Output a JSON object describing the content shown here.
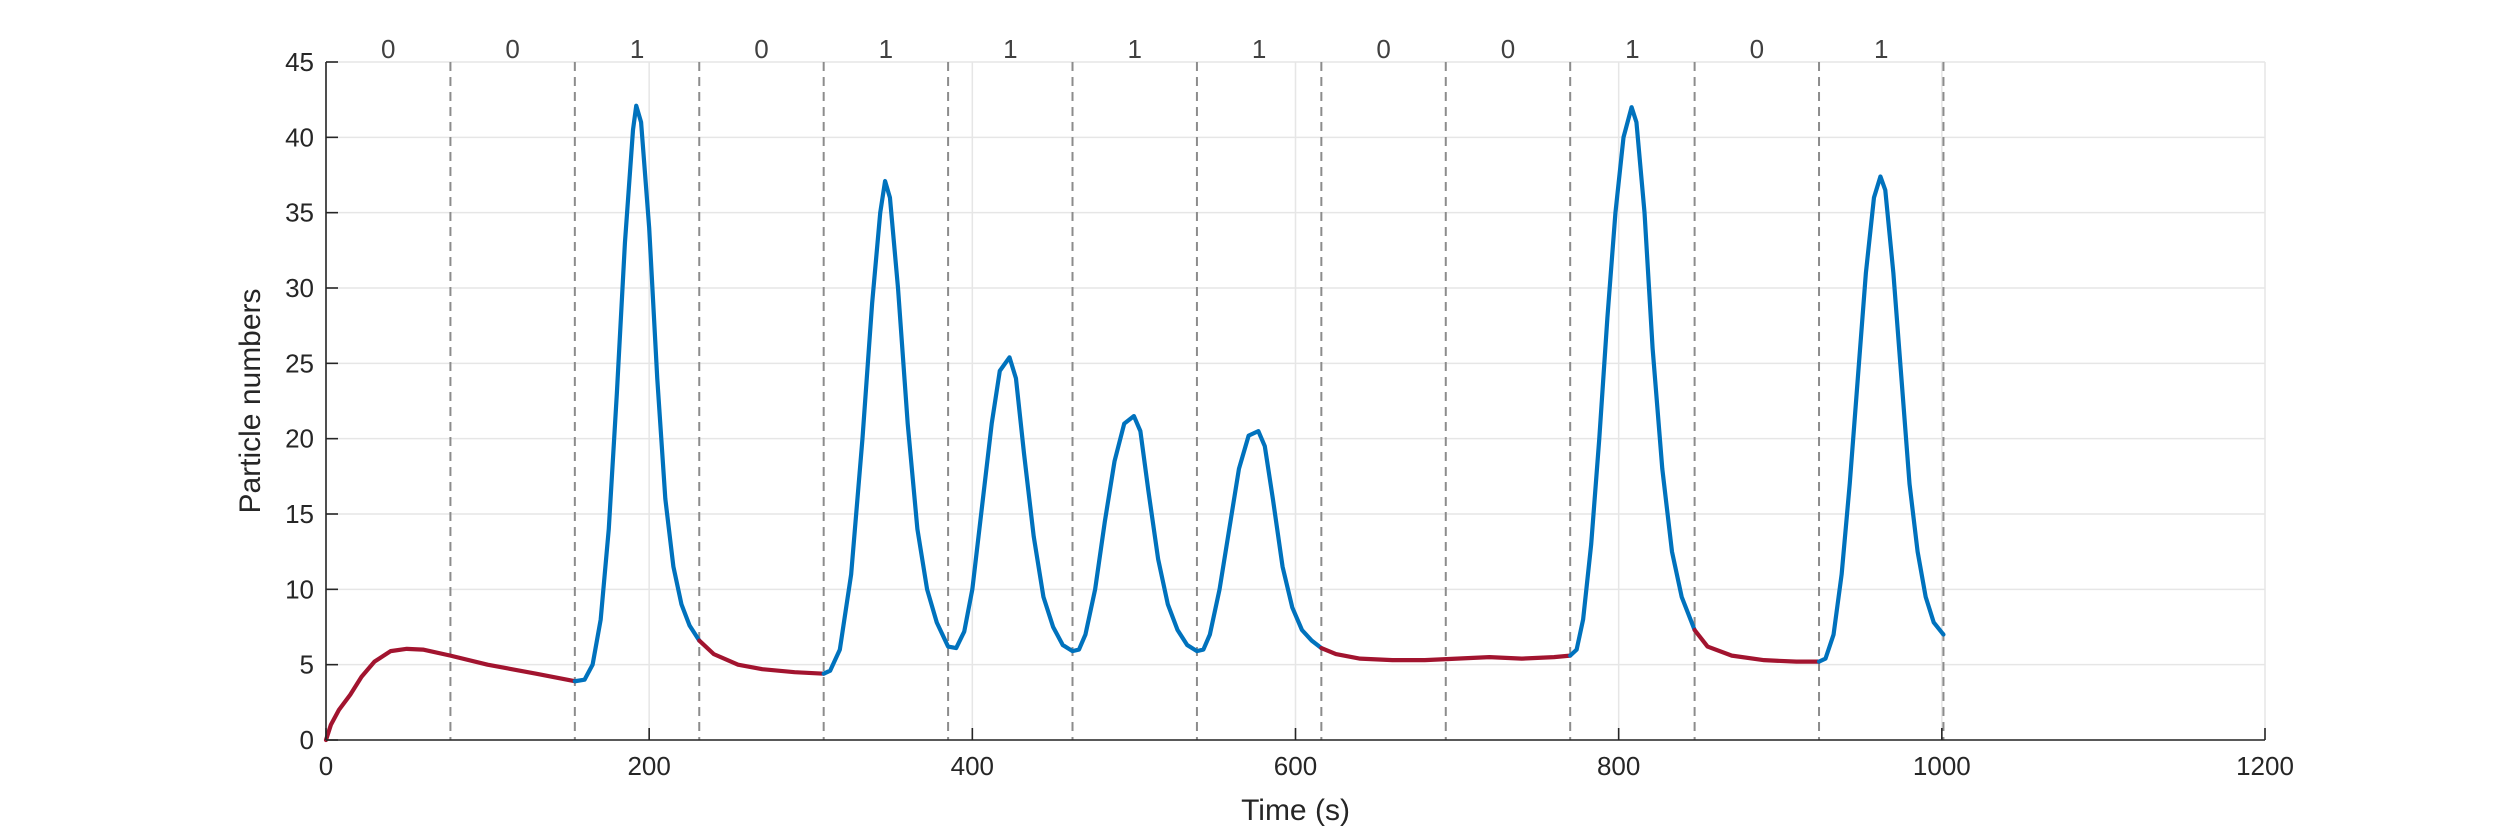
{
  "chart_data": {
    "type": "line",
    "title": "",
    "xlabel": "Time (s)",
    "ylabel": "Particle numbers",
    "xlim": [
      0,
      1200
    ],
    "ylim": [
      0,
      45
    ],
    "xticks": [
      0,
      200,
      400,
      600,
      800,
      1000,
      1200
    ],
    "yticks": [
      0,
      5,
      10,
      15,
      20,
      25,
      30,
      35,
      40,
      45
    ],
    "grid": true,
    "colors": {
      "state_0": "#a2142f",
      "state_1": "#0072bd",
      "boundary": "#8c8c8c",
      "grid": "#e6e6e6",
      "axis": "#262626"
    },
    "segment_boundaries": [
      77,
      154,
      231,
      308,
      385,
      462,
      539,
      616,
      693,
      770,
      847,
      924,
      1001
    ],
    "segments": [
      {
        "label": "0",
        "start": 0,
        "end": 77
      },
      {
        "label": "0",
        "start": 77,
        "end": 154
      },
      {
        "label": "1",
        "start": 154,
        "end": 231
      },
      {
        "label": "0",
        "start": 231,
        "end": 308
      },
      {
        "label": "1",
        "start": 308,
        "end": 385
      },
      {
        "label": "1",
        "start": 385,
        "end": 462
      },
      {
        "label": "1",
        "start": 462,
        "end": 539
      },
      {
        "label": "1",
        "start": 539,
        "end": 616
      },
      {
        "label": "0",
        "start": 616,
        "end": 693
      },
      {
        "label": "0",
        "start": 693,
        "end": 770
      },
      {
        "label": "1",
        "start": 770,
        "end": 847
      },
      {
        "label": "0",
        "start": 847,
        "end": 924
      },
      {
        "label": "1",
        "start": 924,
        "end": 1001
      }
    ],
    "peaks": [
      {
        "t": 192,
        "value": 42.1
      },
      {
        "t": 346,
        "value": 37.1
      },
      {
        "t": 423,
        "value": 25.4
      },
      {
        "t": 500,
        "value": 21.5
      },
      {
        "t": 577,
        "value": 20.5
      },
      {
        "t": 808,
        "value": 42.0
      },
      {
        "t": 962,
        "value": 37.4
      }
    ],
    "series": [
      {
        "state": "0",
        "points": [
          [
            0,
            0
          ],
          [
            3,
            1
          ],
          [
            8,
            2
          ],
          [
            15,
            3
          ],
          [
            22,
            4.2
          ],
          [
            30,
            5.2
          ],
          [
            40,
            5.9
          ],
          [
            50,
            6.05
          ],
          [
            60,
            6.0
          ],
          [
            77,
            5.6
          ],
          [
            100,
            5.0
          ],
          [
            130,
            4.4
          ],
          [
            154,
            3.9
          ]
        ]
      },
      {
        "state": "1",
        "points": [
          [
            154,
            3.9
          ],
          [
            160,
            4
          ],
          [
            165,
            5
          ],
          [
            170,
            8
          ],
          [
            175,
            14
          ],
          [
            180,
            23
          ],
          [
            185,
            33
          ],
          [
            190,
            40.5
          ],
          [
            192,
            42.1
          ],
          [
            195,
            41
          ],
          [
            200,
            34
          ],
          [
            205,
            24
          ],
          [
            210,
            16
          ],
          [
            215,
            11.5
          ],
          [
            220,
            9
          ],
          [
            225,
            7.6
          ],
          [
            231,
            6.6
          ]
        ]
      },
      {
        "state": "0",
        "points": [
          [
            231,
            6.6
          ],
          [
            240,
            5.7
          ],
          [
            255,
            5
          ],
          [
            270,
            4.7
          ],
          [
            290,
            4.5
          ],
          [
            308,
            4.4
          ]
        ]
      },
      {
        "state": "1",
        "points": [
          [
            308,
            4.4
          ],
          [
            312,
            4.6
          ],
          [
            318,
            6
          ],
          [
            325,
            11
          ],
          [
            332,
            20
          ],
          [
            338,
            29
          ],
          [
            343,
            35
          ],
          [
            346,
            37.1
          ],
          [
            349,
            36
          ],
          [
            354,
            30
          ],
          [
            360,
            21
          ],
          [
            366,
            14
          ],
          [
            372,
            10
          ],
          [
            378,
            7.8
          ],
          [
            385,
            6.2
          ],
          [
            390,
            6.1
          ],
          [
            395,
            7.2
          ],
          [
            400,
            10
          ],
          [
            406,
            15.5
          ],
          [
            412,
            21
          ],
          [
            417,
            24.5
          ],
          [
            423,
            25.4
          ],
          [
            427,
            24
          ],
          [
            432,
            19
          ],
          [
            438,
            13.5
          ],
          [
            444,
            9.5
          ],
          [
            450,
            7.5
          ],
          [
            456,
            6.3
          ],
          [
            462,
            5.9
          ],
          [
            466,
            6
          ],
          [
            470,
            7
          ],
          [
            476,
            10
          ],
          [
            482,
            14.5
          ],
          [
            488,
            18.5
          ],
          [
            494,
            21
          ],
          [
            500,
            21.5
          ],
          [
            504,
            20.5
          ],
          [
            509,
            16.5
          ],
          [
            515,
            12
          ],
          [
            521,
            9
          ],
          [
            527,
            7.3
          ],
          [
            533,
            6.3
          ],
          [
            539,
            5.9
          ],
          [
            543,
            6
          ],
          [
            547,
            7
          ],
          [
            553,
            10
          ],
          [
            559,
            14
          ],
          [
            565,
            18
          ],
          [
            571,
            20.2
          ],
          [
            577,
            20.5
          ],
          [
            581,
            19.5
          ],
          [
            586,
            16
          ],
          [
            592,
            11.5
          ],
          [
            598,
            8.8
          ],
          [
            604,
            7.3
          ],
          [
            610,
            6.6
          ],
          [
            616,
            6.1
          ]
        ]
      },
      {
        "state": "0",
        "points": [
          [
            616,
            6.1
          ],
          [
            625,
            5.7
          ],
          [
            640,
            5.4
          ],
          [
            660,
            5.3
          ],
          [
            680,
            5.3
          ],
          [
            700,
            5.4
          ],
          [
            720,
            5.5
          ],
          [
            740,
            5.4
          ],
          [
            760,
            5.5
          ],
          [
            770,
            5.6
          ]
        ]
      },
      {
        "state": "1",
        "points": [
          [
            770,
            5.6
          ],
          [
            774,
            6
          ],
          [
            778,
            8
          ],
          [
            783,
            13
          ],
          [
            788,
            20
          ],
          [
            793,
            28
          ],
          [
            798,
            35
          ],
          [
            803,
            40
          ],
          [
            808,
            42.0
          ],
          [
            811,
            41
          ],
          [
            816,
            35
          ],
          [
            821,
            26
          ],
          [
            827,
            18
          ],
          [
            833,
            12.5
          ],
          [
            839,
            9.5
          ],
          [
            847,
            7.3
          ]
        ]
      },
      {
        "state": "0",
        "points": [
          [
            847,
            7.3
          ],
          [
            855,
            6.2
          ],
          [
            870,
            5.6
          ],
          [
            890,
            5.3
          ],
          [
            910,
            5.2
          ],
          [
            924,
            5.2
          ]
        ]
      },
      {
        "state": "1",
        "points": [
          [
            924,
            5.2
          ],
          [
            928,
            5.4
          ],
          [
            933,
            7
          ],
          [
            938,
            11
          ],
          [
            943,
            17
          ],
          [
            948,
            24
          ],
          [
            953,
            31
          ],
          [
            958,
            36
          ],
          [
            962,
            37.4
          ],
          [
            965,
            36.5
          ],
          [
            970,
            31
          ],
          [
            975,
            24
          ],
          [
            980,
            17
          ],
          [
            985,
            12.5
          ],
          [
            990,
            9.5
          ],
          [
            995,
            7.8
          ],
          [
            1001,
            7.0
          ]
        ]
      }
    ]
  }
}
